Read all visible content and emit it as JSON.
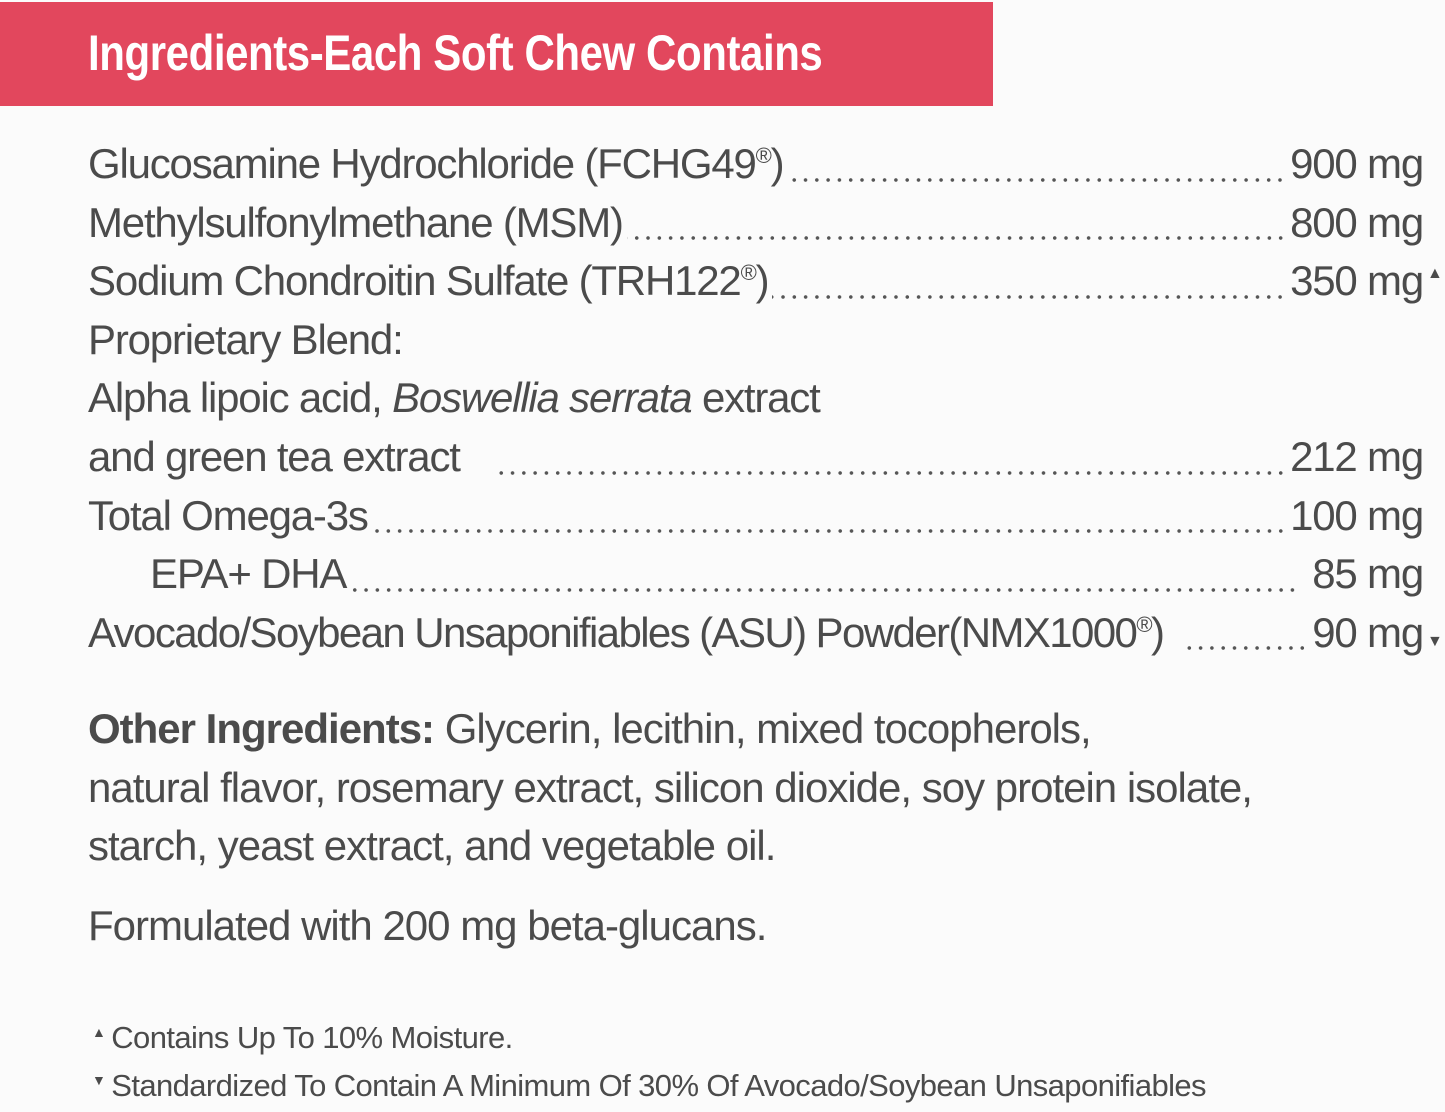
{
  "header": {
    "title": "Ingredients-Each Soft Chew Contains",
    "color": "#e2475d"
  },
  "ingredients": [
    {
      "name": "Glucosamine Hydrochloride (FCHG49",
      "reg": "®",
      "close": ")",
      "amount": "900 mg",
      "mark": ""
    },
    {
      "name": "Methylsulfonylmethane (MSM)",
      "reg": "",
      "close": "",
      "amount": "800 mg",
      "mark": ""
    },
    {
      "name": "Sodium Chondroitin Sulfate (TRH122",
      "reg": "®",
      "close": ")",
      "amount": "350 mg",
      "mark": "▲"
    },
    {
      "name": "Proprietary Blend:"
    },
    {
      "name_a": "Alpha lipoic acid, ",
      "name_italic": "Boswellia serrata",
      "name_b": " extract"
    },
    {
      "name": "and green tea extract",
      "amount": "212 mg"
    },
    {
      "name": "Total Omega-3s",
      "amount": "100 mg"
    },
    {
      "name": "EPA+ DHA",
      "amount": "85 mg"
    },
    {
      "name": "Avocado/Soybean Unsaponifiables (ASU) Powder(NMX1000",
      "reg": "®",
      "close": ")",
      "amount": "90 mg",
      "mark": "▼"
    }
  ],
  "other": {
    "label": "Other Ingredients:",
    "text1": " Glycerin, lecithin, mixed tocopherols,",
    "text2": "natural flavor, rosemary extract, silicon dioxide, soy protein isolate,",
    "text3": "starch, yeast extract, and vegetable oil."
  },
  "formulated": "Formulated with 200 mg beta-glucans.",
  "footnotes": [
    {
      "mark": "▲",
      "text": "Contains Up To 10% Moisture."
    },
    {
      "mark": "▼",
      "text": "Standardized To Contain A Minimum Of 30% Of Avocado/Soybean Unsaponifiables"
    }
  ]
}
